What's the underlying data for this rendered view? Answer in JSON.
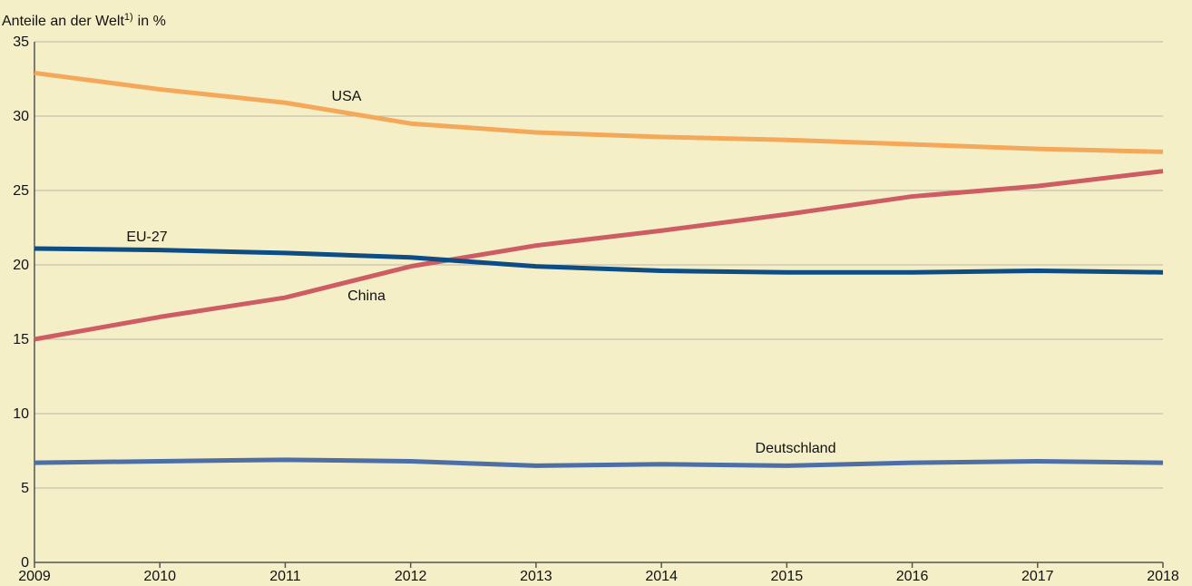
{
  "chart_data": {
    "type": "line",
    "ylabel": "Anteile an der Welt",
    "ylabel_note": "1)",
    "ylabel_suffix": "in %",
    "x": [
      2009,
      2010,
      2011,
      2012,
      2013,
      2014,
      2015,
      2016,
      2017,
      2018
    ],
    "xlim": [
      2009,
      2018
    ],
    "xticks": [
      2009,
      2010,
      2011,
      2012,
      2013,
      2014,
      2015,
      2016,
      2017,
      2018
    ],
    "ylim": [
      0,
      35
    ],
    "yticks": [
      0,
      5,
      10,
      15,
      20,
      25,
      30,
      35
    ],
    "grid": true,
    "series": [
      {
        "name": "USA",
        "color": "#f4a95a",
        "values": [
          32.9,
          31.8,
          30.9,
          29.5,
          28.9,
          28.6,
          28.4,
          28.1,
          27.8,
          27.6
        ]
      },
      {
        "name": "China",
        "color": "#cd5c63",
        "values": [
          15.0,
          16.5,
          17.8,
          19.9,
          21.3,
          22.3,
          23.4,
          24.6,
          25.3,
          26.3
        ]
      },
      {
        "name": "EU-27",
        "color": "#0d4d86",
        "values": [
          21.1,
          21.0,
          20.8,
          20.5,
          19.9,
          19.6,
          19.5,
          19.5,
          19.6,
          19.5
        ]
      },
      {
        "name": "Deutschland",
        "color": "#4d6fa8",
        "values": [
          6.7,
          6.8,
          6.9,
          6.8,
          6.5,
          6.6,
          6.5,
          6.7,
          6.8,
          6.7
        ]
      }
    ]
  }
}
